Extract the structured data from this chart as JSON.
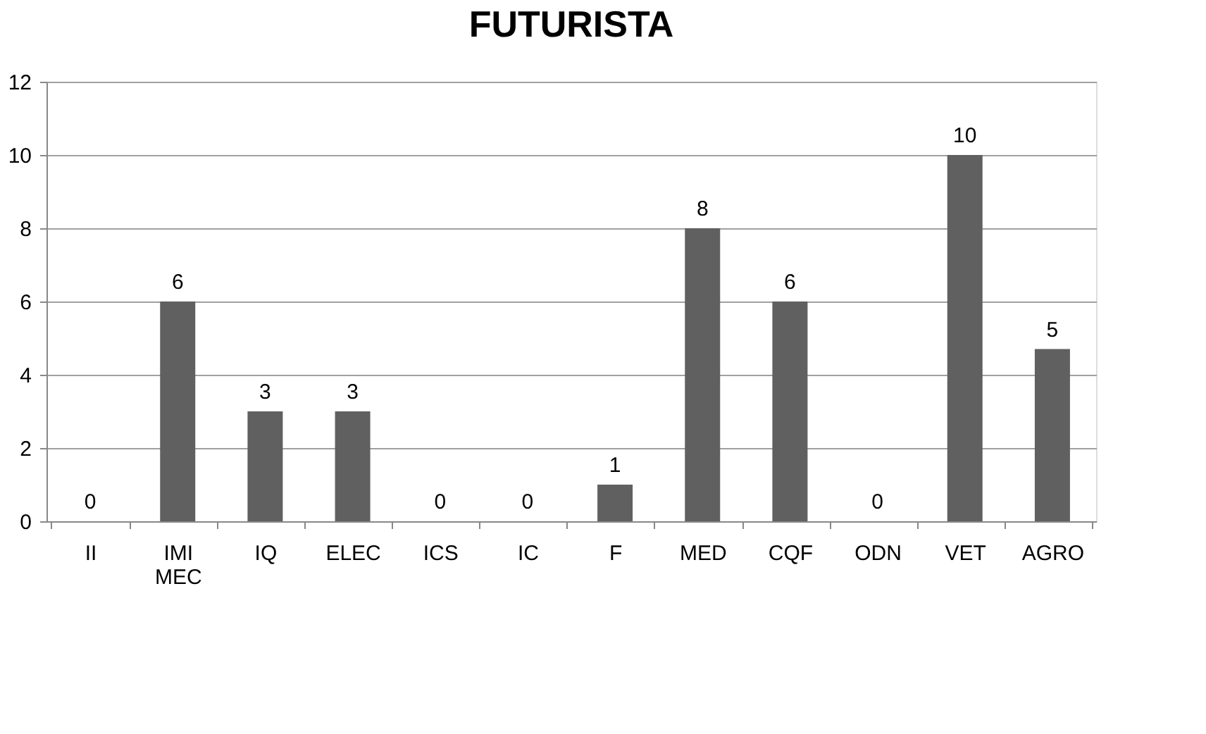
{
  "chart_data": {
    "type": "bar",
    "title": "FUTURISTA",
    "categories": [
      "II",
      "IMI MEC",
      "IQ",
      "ELEC",
      "ICS",
      "IC",
      "F",
      "MED",
      "CQF",
      "ODN",
      "VET",
      "AGRO"
    ],
    "values": [
      0,
      6,
      3,
      3,
      0,
      0,
      1,
      8,
      6,
      0,
      10,
      4.7
    ],
    "value_labels": [
      "0",
      "6",
      "3",
      "3",
      "0",
      "0",
      "1",
      "8",
      "6",
      "0",
      "10",
      "5"
    ],
    "color": "#606060",
    "ylim": [
      0,
      12
    ],
    "yticks": [
      0,
      2,
      4,
      6,
      8,
      10,
      12
    ],
    "grid": "y"
  }
}
